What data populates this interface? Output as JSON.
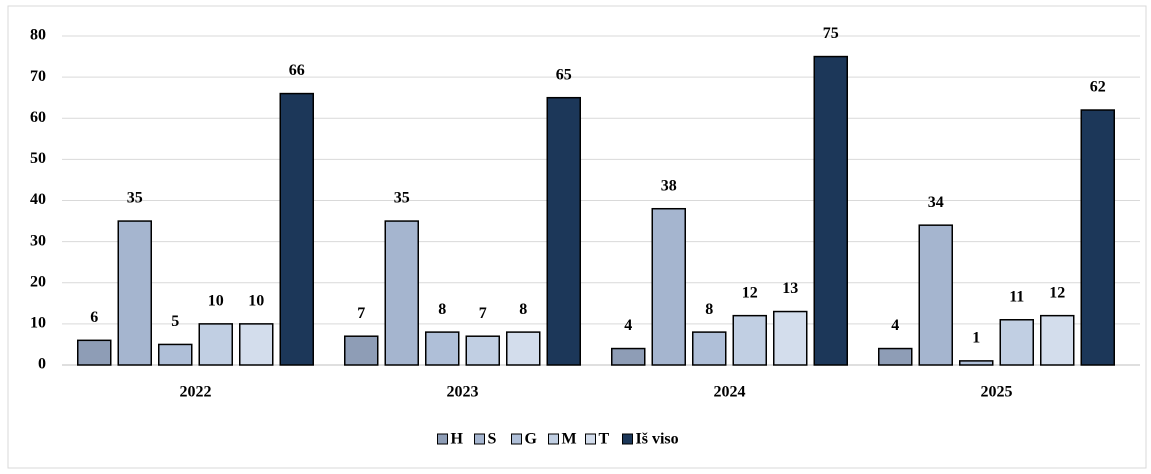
{
  "chart_data": {
    "type": "bar",
    "categories": [
      "2022",
      "2023",
      "2024",
      "2025"
    ],
    "series": [
      {
        "name": "H",
        "color": "#8e9db6",
        "values": [
          6,
          7,
          4,
          4
        ]
      },
      {
        "name": "S",
        "color": "#a5b5cf",
        "values": [
          35,
          35,
          38,
          34
        ]
      },
      {
        "name": "G",
        "color": "#afbfd8",
        "values": [
          5,
          8,
          8,
          1
        ]
      },
      {
        "name": "M",
        "color": "#c1cfe3",
        "values": [
          10,
          7,
          12,
          11
        ]
      },
      {
        "name": "T",
        "color": "#d3ddec",
        "values": [
          10,
          8,
          13,
          12
        ]
      },
      {
        "name": "Iš viso",
        "color": "#1c3759",
        "values": [
          66,
          65,
          75,
          62
        ]
      }
    ],
    "ylim": [
      0,
      80
    ],
    "yticks": [
      0,
      10,
      20,
      30,
      40,
      50,
      60,
      70,
      80
    ],
    "grid": true,
    "legend": "bottom"
  }
}
